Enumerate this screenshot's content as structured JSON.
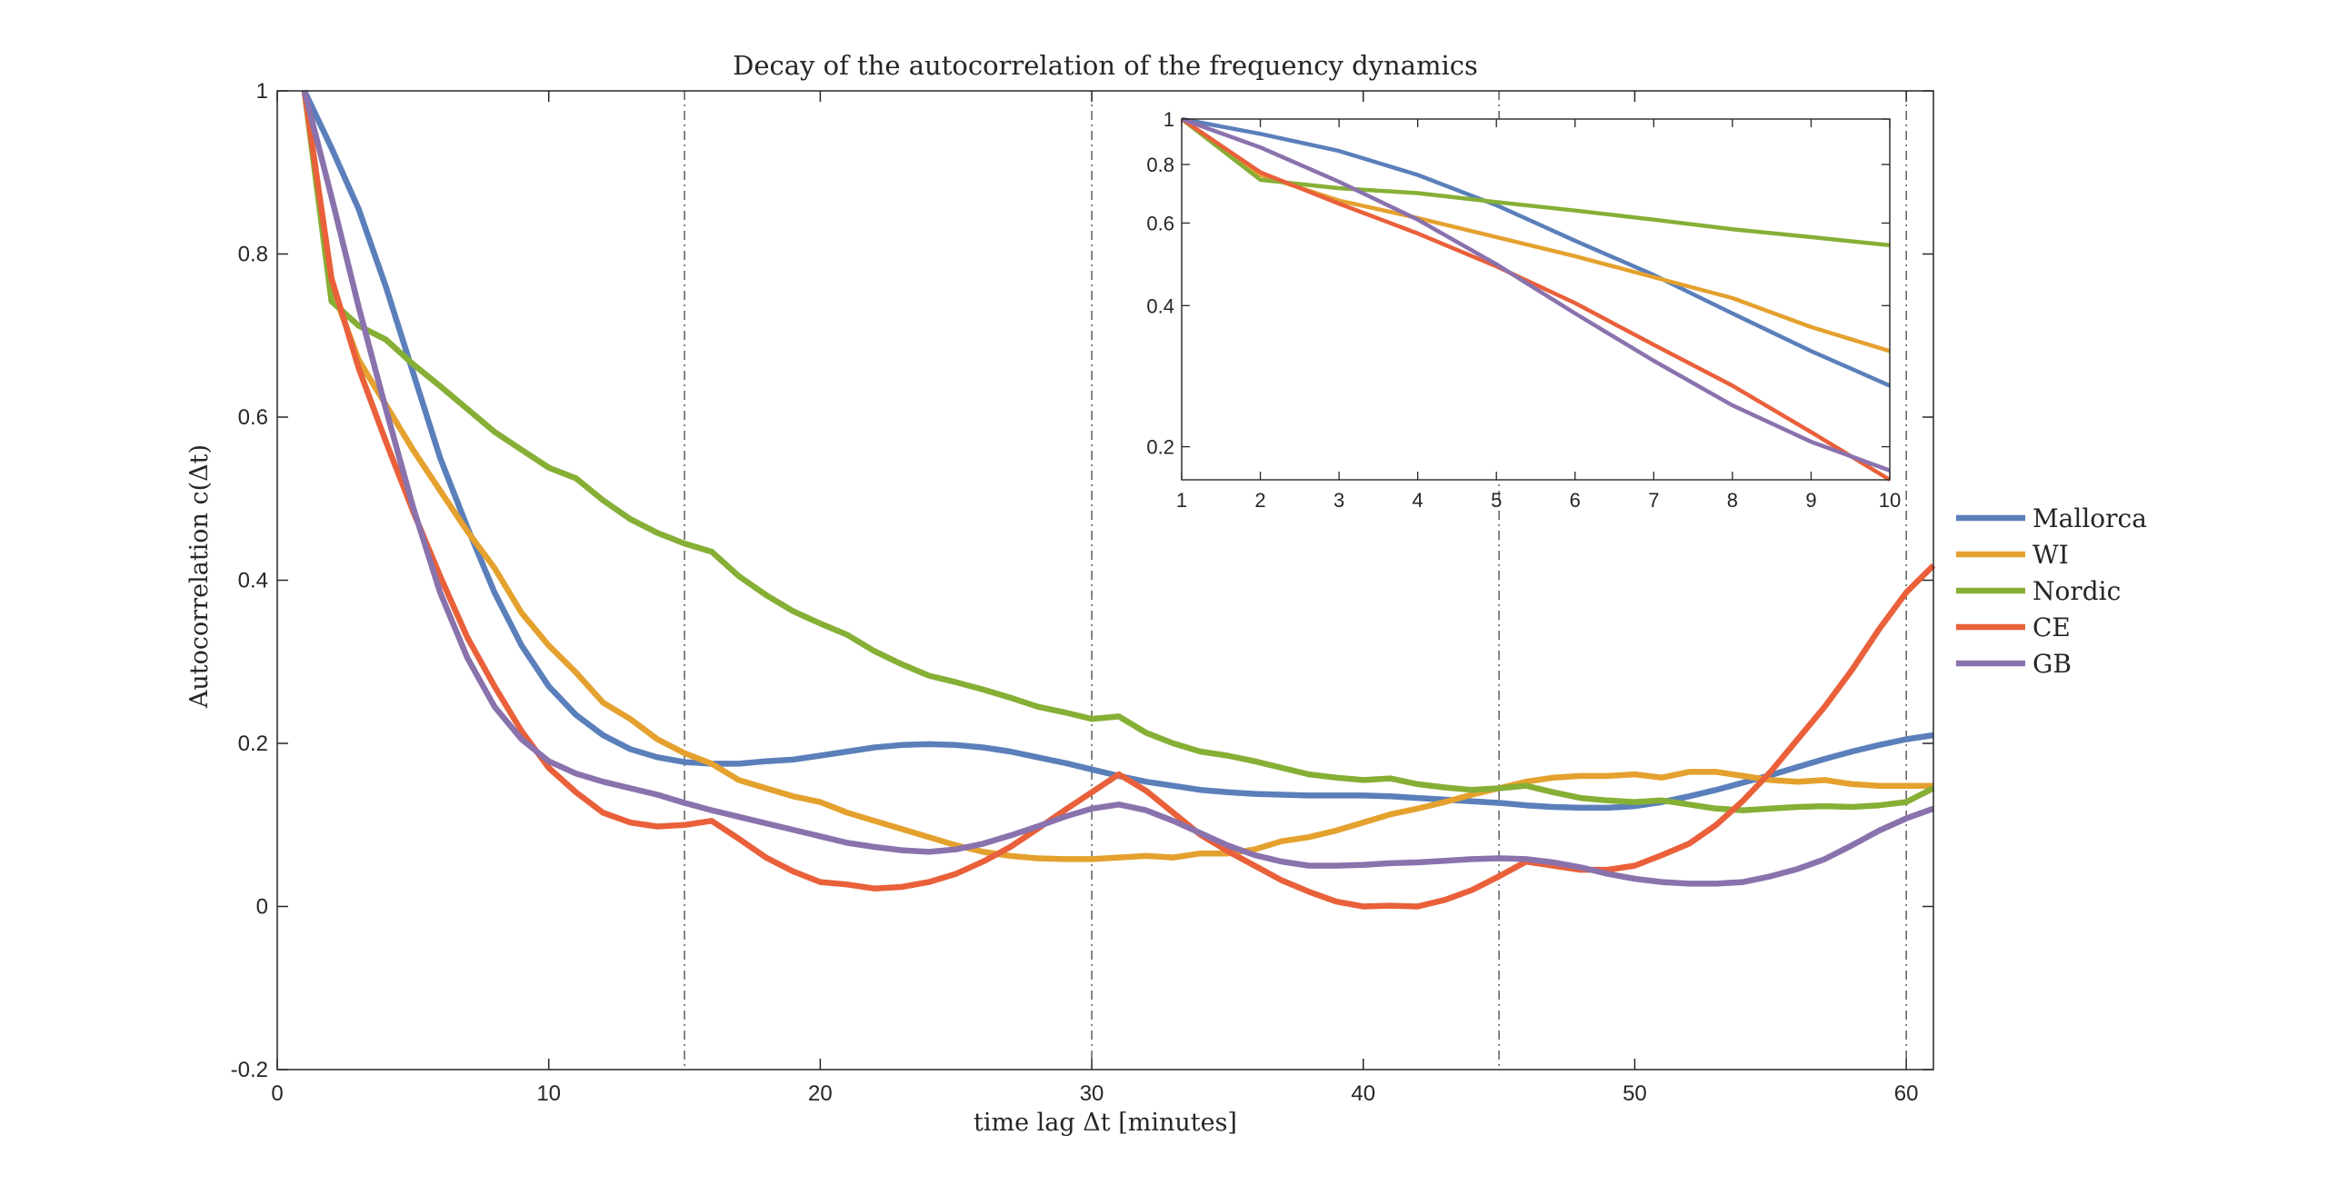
{
  "chart_data": {
    "type": "line",
    "title": "Decay of the autocorrelation of the frequency dynamics",
    "xlabel": "time lag Δt [minutes]",
    "ylabel": "Autocorrelation c(Δt)",
    "xlim": [
      0,
      61
    ],
    "ylim": [
      -0.2,
      1
    ],
    "xticks": [
      "0",
      "10",
      "20",
      "30",
      "40",
      "50",
      "60"
    ],
    "xtick_values": [
      0,
      10,
      20,
      30,
      40,
      50,
      60
    ],
    "yticks": [
      "-0.2",
      "0",
      "0.2",
      "0.4",
      "0.6",
      "0.8",
      "1"
    ],
    "ytick_values": [
      -0.2,
      0,
      0.2,
      0.4,
      0.6,
      0.8,
      1
    ],
    "vertical_reference_lines": [
      15,
      30,
      45,
      60
    ],
    "grid": false,
    "legend_placement": "outside-right",
    "colors": {
      "Mallorca": "#5a7fba",
      "WI": "#e4a12e",
      "Nordic": "#86af35",
      "CE": "#e9603a",
      "GB": "#8a72ad"
    },
    "series": [
      {
        "name": "Mallorca",
        "x": [
          1,
          2,
          3,
          4,
          5,
          6,
          7,
          8,
          9,
          10,
          11,
          12,
          13,
          14,
          15,
          16,
          17,
          18,
          19,
          20,
          21,
          22,
          23,
          24,
          25,
          26,
          27,
          28,
          29,
          30,
          31,
          32,
          33,
          34,
          35,
          36,
          37,
          38,
          39,
          40,
          41,
          42,
          43,
          44,
          45,
          46,
          47,
          48,
          49,
          50,
          51,
          52,
          53,
          54,
          55,
          56,
          57,
          58,
          59,
          60,
          61
        ],
        "y": [
          1.0,
          0.93,
          0.855,
          0.76,
          0.655,
          0.55,
          0.465,
          0.385,
          0.32,
          0.27,
          0.235,
          0.21,
          0.193,
          0.183,
          0.177,
          0.175,
          0.175,
          0.178,
          0.18,
          0.185,
          0.19,
          0.195,
          0.198,
          0.199,
          0.198,
          0.195,
          0.19,
          0.183,
          0.176,
          0.168,
          0.16,
          0.153,
          0.148,
          0.143,
          0.14,
          0.138,
          0.137,
          0.136,
          0.136,
          0.136,
          0.135,
          0.133,
          0.131,
          0.129,
          0.127,
          0.124,
          0.122,
          0.121,
          0.121,
          0.123,
          0.128,
          0.135,
          0.143,
          0.152,
          0.161,
          0.171,
          0.181,
          0.19,
          0.198,
          0.205,
          0.21
        ]
      },
      {
        "name": "WI",
        "x": [
          1,
          2,
          3,
          4,
          5,
          6,
          7,
          8,
          9,
          10,
          11,
          12,
          13,
          14,
          15,
          16,
          17,
          18,
          19,
          20,
          21,
          22,
          23,
          24,
          25,
          26,
          27,
          28,
          29,
          30,
          31,
          32,
          33,
          34,
          35,
          36,
          37,
          38,
          39,
          40,
          41,
          42,
          43,
          44,
          45,
          46,
          47,
          48,
          49,
          50,
          51,
          52,
          53,
          54,
          55,
          56,
          57,
          58,
          59,
          60,
          61
        ],
        "y": [
          1.0,
          0.76,
          0.67,
          0.615,
          0.56,
          0.51,
          0.46,
          0.415,
          0.36,
          0.32,
          0.287,
          0.25,
          0.23,
          0.205,
          0.188,
          0.175,
          0.155,
          0.145,
          0.135,
          0.128,
          0.115,
          0.105,
          0.095,
          0.085,
          0.075,
          0.067,
          0.062,
          0.059,
          0.058,
          0.058,
          0.06,
          0.062,
          0.06,
          0.065,
          0.065,
          0.07,
          0.08,
          0.085,
          0.093,
          0.103,
          0.113,
          0.12,
          0.128,
          0.137,
          0.145,
          0.153,
          0.158,
          0.16,
          0.16,
          0.162,
          0.158,
          0.165,
          0.165,
          0.16,
          0.155,
          0.153,
          0.155,
          0.15,
          0.148,
          0.148,
          0.148
        ]
      },
      {
        "name": "Nordic",
        "x": [
          1,
          2,
          3,
          4,
          5,
          6,
          7,
          8,
          9,
          10,
          11,
          12,
          13,
          14,
          15,
          16,
          17,
          18,
          19,
          20,
          21,
          22,
          23,
          24,
          25,
          26,
          27,
          28,
          29,
          30,
          31,
          32,
          33,
          34,
          35,
          36,
          37,
          38,
          39,
          40,
          41,
          42,
          43,
          44,
          45,
          46,
          47,
          48,
          49,
          50,
          51,
          52,
          53,
          54,
          55,
          56,
          57,
          58,
          59,
          60,
          61
        ],
        "y": [
          1.0,
          0.742,
          0.712,
          0.695,
          0.665,
          0.638,
          0.61,
          0.582,
          0.56,
          0.538,
          0.525,
          0.498,
          0.475,
          0.458,
          0.445,
          0.435,
          0.405,
          0.382,
          0.362,
          0.347,
          0.333,
          0.313,
          0.297,
          0.283,
          0.275,
          0.266,
          0.256,
          0.245,
          0.238,
          0.23,
          0.233,
          0.213,
          0.2,
          0.19,
          0.185,
          0.178,
          0.17,
          0.162,
          0.158,
          0.155,
          0.157,
          0.15,
          0.146,
          0.143,
          0.145,
          0.148,
          0.14,
          0.133,
          0.13,
          0.128,
          0.13,
          0.125,
          0.12,
          0.118,
          0.12,
          0.122,
          0.123,
          0.122,
          0.124,
          0.128,
          0.145
        ]
      },
      {
        "name": "CE",
        "x": [
          1,
          2,
          3,
          4,
          5,
          6,
          7,
          8,
          9,
          10,
          11,
          12,
          13,
          14,
          15,
          16,
          17,
          18,
          19,
          20,
          21,
          22,
          23,
          24,
          25,
          26,
          27,
          28,
          29,
          30,
          31,
          32,
          33,
          34,
          35,
          36,
          37,
          38,
          39,
          40,
          41,
          42,
          43,
          44,
          45,
          46,
          47,
          48,
          49,
          50,
          51,
          52,
          53,
          54,
          55,
          56,
          57,
          58,
          59,
          60,
          61
        ],
        "y": [
          1.0,
          0.77,
          0.66,
          0.57,
          0.485,
          0.405,
          0.33,
          0.27,
          0.215,
          0.17,
          0.14,
          0.115,
          0.103,
          0.098,
          0.1,
          0.105,
          0.083,
          0.06,
          0.043,
          0.03,
          0.027,
          0.022,
          0.024,
          0.03,
          0.04,
          0.055,
          0.073,
          0.095,
          0.118,
          0.14,
          0.162,
          0.142,
          0.115,
          0.088,
          0.068,
          0.05,
          0.032,
          0.018,
          0.006,
          0.0,
          0.001,
          0.0,
          0.008,
          0.02,
          0.037,
          0.055,
          0.05,
          0.045,
          0.045,
          0.05,
          0.063,
          0.077,
          0.1,
          0.13,
          0.165,
          0.205,
          0.245,
          0.29,
          0.34,
          0.385,
          0.418
        ]
      },
      {
        "name": "GB",
        "x": [
          1,
          2,
          3,
          4,
          5,
          6,
          7,
          8,
          9,
          10,
          11,
          12,
          13,
          14,
          15,
          16,
          17,
          18,
          19,
          20,
          21,
          22,
          23,
          24,
          25,
          26,
          27,
          28,
          29,
          30,
          31,
          32,
          33,
          34,
          35,
          36,
          37,
          38,
          39,
          40,
          41,
          42,
          43,
          44,
          45,
          46,
          47,
          48,
          49,
          50,
          51,
          52,
          53,
          54,
          55,
          56,
          57,
          58,
          59,
          60,
          61
        ],
        "y": [
          1.0,
          0.87,
          0.735,
          0.61,
          0.49,
          0.385,
          0.305,
          0.245,
          0.205,
          0.178,
          0.163,
          0.153,
          0.145,
          0.137,
          0.127,
          0.118,
          0.11,
          0.102,
          0.094,
          0.086,
          0.078,
          0.073,
          0.069,
          0.067,
          0.07,
          0.077,
          0.087,
          0.098,
          0.11,
          0.12,
          0.125,
          0.118,
          0.105,
          0.09,
          0.075,
          0.063,
          0.055,
          0.05,
          0.05,
          0.051,
          0.053,
          0.054,
          0.056,
          0.058,
          0.059,
          0.058,
          0.054,
          0.048,
          0.04,
          0.034,
          0.03,
          0.028,
          0.028,
          0.03,
          0.037,
          0.046,
          0.058,
          0.075,
          0.093,
          0.108,
          0.12
        ]
      }
    ],
    "inset": {
      "type": "line",
      "xlim": [
        1,
        10
      ],
      "ylim": [
        0.17,
        1.0
      ],
      "yscale": "log",
      "xticks": [
        "1",
        "2",
        "3",
        "4",
        "5",
        "6",
        "7",
        "8",
        "9",
        "10"
      ],
      "xtick_values": [
        1,
        2,
        3,
        4,
        5,
        6,
        7,
        8,
        9,
        10
      ],
      "yticks": [
        "0.2",
        "0.4",
        "0.6",
        "0.8",
        "1"
      ],
      "ytick_values": [
        0.2,
        0.4,
        0.6,
        0.8,
        1.0
      ],
      "series": [
        {
          "name": "Mallorca",
          "x": [
            1,
            2,
            3,
            4,
            5,
            6,
            7,
            8,
            9,
            10
          ],
          "y": [
            1.0,
            0.93,
            0.855,
            0.76,
            0.655,
            0.55,
            0.465,
            0.385,
            0.32,
            0.27
          ]
        },
        {
          "name": "WI",
          "x": [
            1,
            2,
            3,
            4,
            5,
            6,
            7,
            8,
            9,
            10
          ],
          "y": [
            1.0,
            0.76,
            0.67,
            0.615,
            0.56,
            0.51,
            0.46,
            0.415,
            0.36,
            0.32
          ]
        },
        {
          "name": "Nordic",
          "x": [
            1,
            2,
            3,
            4,
            5,
            6,
            7,
            8,
            9,
            10
          ],
          "y": [
            1.0,
            0.742,
            0.712,
            0.695,
            0.665,
            0.638,
            0.61,
            0.582,
            0.56,
            0.538
          ]
        },
        {
          "name": "CE",
          "x": [
            1,
            2,
            3,
            4,
            5,
            6,
            7,
            8,
            9,
            10
          ],
          "y": [
            1.0,
            0.77,
            0.66,
            0.57,
            0.485,
            0.405,
            0.33,
            0.27,
            0.215,
            0.17
          ]
        },
        {
          "name": "GB",
          "x": [
            1,
            2,
            3,
            4,
            5,
            6,
            7,
            8,
            9,
            10
          ],
          "y": [
            1.0,
            0.87,
            0.735,
            0.61,
            0.49,
            0.385,
            0.305,
            0.245,
            0.205,
            0.178
          ]
        }
      ]
    }
  }
}
